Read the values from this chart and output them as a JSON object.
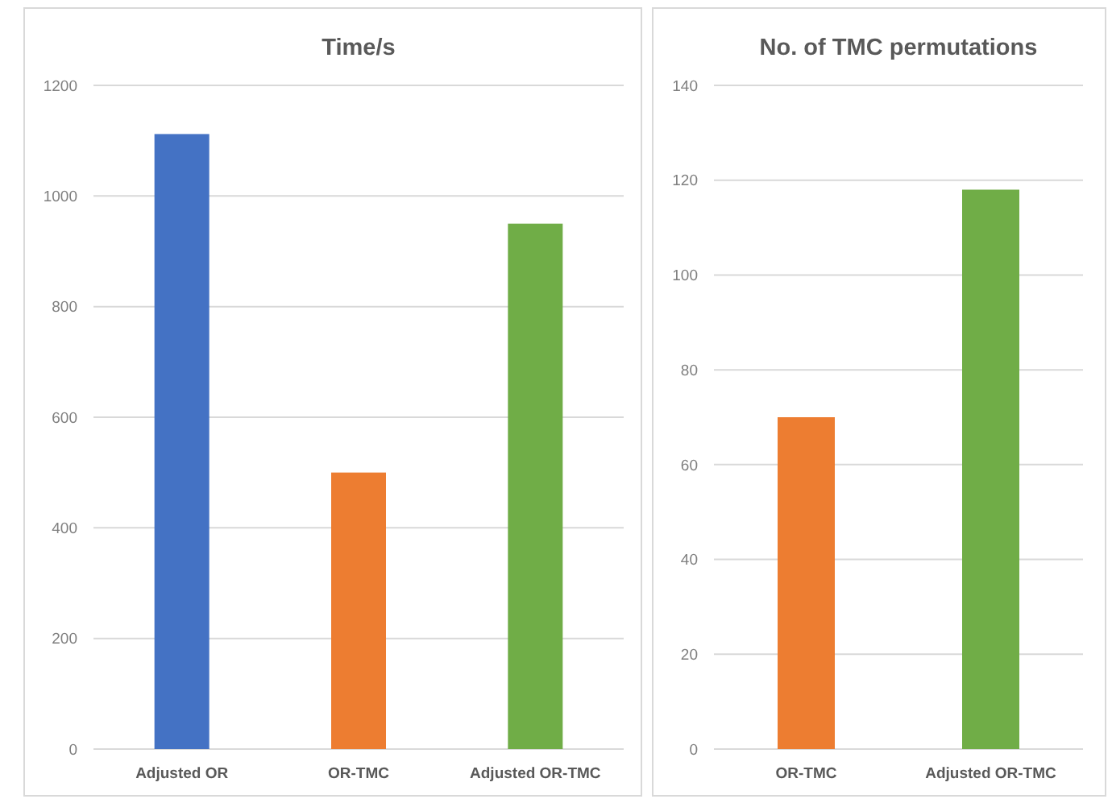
{
  "chart_data": [
    {
      "type": "bar",
      "title": "Time/s",
      "categories": [
        "Adjusted OR",
        "OR-TMC",
        "Adjusted OR-TMC"
      ],
      "values": [
        1112,
        500,
        950
      ],
      "colors": [
        "#4472c4",
        "#ed7d31",
        "#70ad47"
      ],
      "ylim": [
        0,
        1200
      ],
      "yticks": [
        0,
        200,
        400,
        600,
        800,
        1000,
        1200
      ],
      "grid": "y"
    },
    {
      "type": "bar",
      "title": "No. of TMC permutations",
      "categories": [
        "OR-TMC",
        "Adjusted OR-TMC"
      ],
      "values": [
        70,
        118
      ],
      "colors": [
        "#ed7d31",
        "#70ad47"
      ],
      "ylim": [
        0,
        140
      ],
      "yticks": [
        0,
        20,
        40,
        60,
        80,
        100,
        120,
        140
      ],
      "grid": "y"
    }
  ]
}
